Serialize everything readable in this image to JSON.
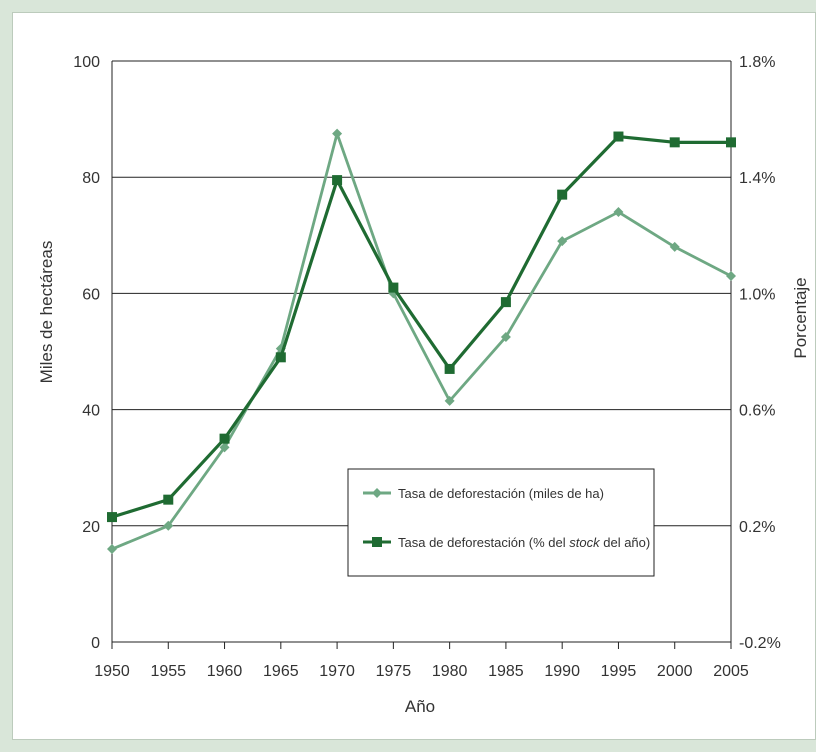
{
  "chart_data": {
    "type": "line",
    "title": "",
    "xlabel": "Año",
    "ylabel_left": "Miles de hectáreas",
    "ylabel_right": "Porcentaje",
    "x": [
      1950,
      1955,
      1960,
      1965,
      1970,
      1975,
      1980,
      1985,
      1990,
      1995,
      2000,
      2005
    ],
    "x_ticks": [
      "1950",
      "1955",
      "1960",
      "1965",
      "1970",
      "1975",
      "1980",
      "1985",
      "1990",
      "1995",
      "2000",
      "2005"
    ],
    "y_left_lim": [
      0,
      100
    ],
    "y_left_ticks": [
      "0",
      "20",
      "40",
      "60",
      "80",
      "100"
    ],
    "y_right_lim": [
      -0.2,
      1.8
    ],
    "y_right_ticks": [
      "-0.2%",
      "0.2%",
      "0.6%",
      "1.0%",
      "1.4%",
      "1.8%"
    ],
    "grid": "horizontal",
    "legend_position": "lower-right",
    "series": [
      {
        "name": "Tasa de deforestación (miles de ha)",
        "axis": "left",
        "marker": "diamond",
        "color": "#6ea883",
        "values": [
          16,
          20,
          33.5,
          50.5,
          87.5,
          60,
          41.5,
          52.5,
          69,
          74,
          68,
          63
        ]
      },
      {
        "name": "Tasa de deforestación (% del stock del año)",
        "axis": "right",
        "marker": "square",
        "color": "#1f6b32",
        "values": [
          0.23,
          0.29,
          0.5,
          0.78,
          1.39,
          1.02,
          0.74,
          0.97,
          1.34,
          1.54,
          1.52,
          1.52
        ]
      }
    ],
    "legend": [
      {
        "label": "Tasa de deforestación (miles de ha)",
        "marker": "diamond"
      },
      {
        "label_prefix": "Tasa de deforestación (% del ",
        "label_italic": "stock",
        "label_suffix": " del año)",
        "marker": "square"
      }
    ]
  }
}
